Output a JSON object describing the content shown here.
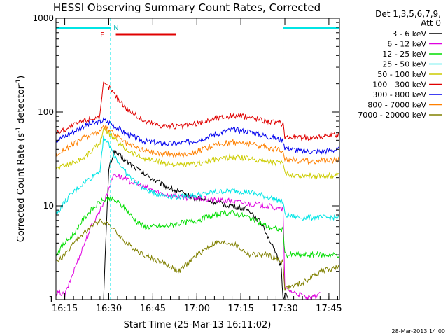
{
  "chart_data": {
    "type": "line",
    "title": "HESSI Observing Summary Count Rates, Corrected",
    "xlabel": "Start Time (25-Mar-13 16:11:02)",
    "ylabel_parts": [
      "Corrected Count Rate (s",
      "-1",
      " detector",
      "-1",
      ")"
    ],
    "y_scale": "log",
    "ylim": [
      1,
      1000
    ],
    "xlim_minutes": [
      16.2,
      17.81
    ],
    "y_ticks": [
      {
        "value": 1,
        "label": "1"
      },
      {
        "value": 10,
        "label": "10"
      },
      {
        "value": 100,
        "label": "100"
      },
      {
        "value": 1000,
        "label": "1000"
      }
    ],
    "x_ticks": [
      {
        "value": 16.25,
        "label": "16:15"
      },
      {
        "value": 16.5,
        "label": "16:30"
      },
      {
        "value": 16.75,
        "label": "16:45"
      },
      {
        "value": 17.0,
        "label": "17:00"
      },
      {
        "value": 17.25,
        "label": "17:15"
      },
      {
        "value": 17.5,
        "label": "17:30"
      },
      {
        "value": 17.75,
        "label": "17:45"
      }
    ],
    "legend_header": [
      "Det 1,3,5,6,7,9,",
      "Att 0"
    ],
    "legend_position": "right",
    "timestamp": "28-Mar-2013 14:00",
    "flag_labels": {
      "flare": "F",
      "night": "N"
    },
    "flag_bars": [
      {
        "kind": "night",
        "color": "#00e5e5",
        "from": 16.2,
        "to": 16.51
      },
      {
        "kind": "night",
        "color": "#00e5e5",
        "from": 17.49,
        "to": 17.81
      },
      {
        "kind": "flare",
        "color": "#e00000",
        "from": 16.54,
        "to": 16.88
      }
    ],
    "dashed_markers": [
      16.51,
      17.81
    ],
    "solid_markers": [
      17.49
    ],
    "series": [
      {
        "name": "3 - 6 keV",
        "color": "#000000",
        "points": [
          [
            16.47,
            1
          ],
          [
            16.5,
            25
          ],
          [
            16.53,
            38
          ],
          [
            16.6,
            30
          ],
          [
            16.7,
            22
          ],
          [
            16.8,
            17
          ],
          [
            16.9,
            14
          ],
          [
            17.0,
            12
          ],
          [
            17.1,
            11
          ],
          [
            17.2,
            10
          ],
          [
            17.3,
            9
          ],
          [
            17.38,
            6
          ],
          [
            17.45,
            3
          ],
          [
            17.48,
            2.2
          ],
          [
            17.49,
            1
          ],
          [
            17.5,
            1.2
          ],
          [
            17.52,
            1
          ]
        ]
      },
      {
        "name": "6 - 12 keV",
        "color": "#e000e0",
        "points": [
          [
            16.2,
            1.1
          ],
          [
            16.22,
            1.2
          ],
          [
            16.25,
            1.1
          ],
          [
            16.3,
            2
          ],
          [
            16.35,
            3.5
          ],
          [
            16.4,
            6
          ],
          [
            16.45,
            9
          ],
          [
            16.48,
            12
          ],
          [
            16.53,
            22
          ],
          [
            16.6,
            19
          ],
          [
            16.7,
            16
          ],
          [
            16.8,
            13.5
          ],
          [
            16.9,
            12.5
          ],
          [
            17.0,
            12
          ],
          [
            17.1,
            11.5
          ],
          [
            17.2,
            11.2
          ],
          [
            17.3,
            10.5
          ],
          [
            17.4,
            10
          ],
          [
            17.49,
            9
          ],
          [
            17.5,
            1.3
          ],
          [
            17.55,
            1.2
          ],
          [
            17.6,
            1.1
          ],
          [
            17.65,
            1
          ],
          [
            17.7,
            1.2
          ]
        ]
      },
      {
        "name": "12 - 25 keV",
        "color": "#00dd00",
        "points": [
          [
            16.2,
            3
          ],
          [
            16.25,
            4
          ],
          [
            16.3,
            5
          ],
          [
            16.35,
            7
          ],
          [
            16.4,
            9
          ],
          [
            16.45,
            11
          ],
          [
            16.5,
            12
          ],
          [
            16.55,
            11
          ],
          [
            16.6,
            9
          ],
          [
            16.65,
            7
          ],
          [
            16.7,
            6
          ],
          [
            16.8,
            6
          ],
          [
            16.9,
            6.5
          ],
          [
            17.0,
            7
          ],
          [
            17.1,
            8
          ],
          [
            17.2,
            8.5
          ],
          [
            17.3,
            7.5
          ],
          [
            17.4,
            6
          ],
          [
            17.49,
            5.5
          ],
          [
            17.5,
            3
          ],
          [
            17.6,
            3
          ],
          [
            17.7,
            3
          ],
          [
            17.81,
            3
          ]
        ]
      },
      {
        "name": "25 - 50 keV",
        "color": "#00e5e5",
        "points": [
          [
            16.2,
            8
          ],
          [
            16.25,
            11
          ],
          [
            16.3,
            14
          ],
          [
            16.35,
            17
          ],
          [
            16.4,
            20
          ],
          [
            16.45,
            24
          ],
          [
            16.47,
            55
          ],
          [
            16.5,
            45
          ],
          [
            16.55,
            30
          ],
          [
            16.6,
            22
          ],
          [
            16.7,
            15
          ],
          [
            16.8,
            13
          ],
          [
            16.9,
            12.5
          ],
          [
            17.0,
            13
          ],
          [
            17.1,
            14
          ],
          [
            17.2,
            14.5
          ],
          [
            17.3,
            14
          ],
          [
            17.4,
            12.5
          ],
          [
            17.49,
            11
          ],
          [
            17.5,
            8
          ],
          [
            17.6,
            7.5
          ],
          [
            17.7,
            7.5
          ],
          [
            17.81,
            7.5
          ]
        ]
      },
      {
        "name": "50 - 100 keV",
        "color": "#cccc00",
        "points": [
          [
            16.2,
            25
          ],
          [
            16.25,
            27
          ],
          [
            16.3,
            29
          ],
          [
            16.35,
            32
          ],
          [
            16.4,
            38
          ],
          [
            16.45,
            48
          ],
          [
            16.47,
            65
          ],
          [
            16.5,
            60
          ],
          [
            16.55,
            48
          ],
          [
            16.6,
            40
          ],
          [
            16.7,
            32
          ],
          [
            16.8,
            29
          ],
          [
            16.9,
            27
          ],
          [
            17.0,
            28
          ],
          [
            17.1,
            31
          ],
          [
            17.2,
            33
          ],
          [
            17.3,
            32
          ],
          [
            17.4,
            30
          ],
          [
            17.49,
            28
          ],
          [
            17.5,
            22
          ],
          [
            17.6,
            21
          ],
          [
            17.7,
            21
          ],
          [
            17.81,
            21
          ]
        ]
      },
      {
        "name": "100 - 300 keV",
        "color": "#e00000",
        "points": [
          [
            16.2,
            60
          ],
          [
            16.25,
            65
          ],
          [
            16.3,
            72
          ],
          [
            16.35,
            80
          ],
          [
            16.4,
            85
          ],
          [
            16.45,
            90
          ],
          [
            16.47,
            200
          ],
          [
            16.5,
            185
          ],
          [
            16.55,
            140
          ],
          [
            16.6,
            110
          ],
          [
            16.7,
            80
          ],
          [
            16.8,
            72
          ],
          [
            16.9,
            70
          ],
          [
            17.0,
            75
          ],
          [
            17.1,
            85
          ],
          [
            17.2,
            92
          ],
          [
            17.3,
            88
          ],
          [
            17.4,
            80
          ],
          [
            17.49,
            75
          ],
          [
            17.5,
            55
          ],
          [
            17.6,
            53
          ],
          [
            17.7,
            55
          ],
          [
            17.81,
            57
          ]
        ]
      },
      {
        "name": "300 - 800 keV",
        "color": "#0000ee",
        "points": [
          [
            16.2,
            50
          ],
          [
            16.25,
            55
          ],
          [
            16.3,
            62
          ],
          [
            16.35,
            70
          ],
          [
            16.4,
            75
          ],
          [
            16.45,
            78
          ],
          [
            16.47,
            82
          ],
          [
            16.5,
            78
          ],
          [
            16.55,
            68
          ],
          [
            16.6,
            58
          ],
          [
            16.7,
            49
          ],
          [
            16.8,
            46
          ],
          [
            16.9,
            46
          ],
          [
            17.0,
            50
          ],
          [
            17.1,
            58
          ],
          [
            17.2,
            65
          ],
          [
            17.3,
            62
          ],
          [
            17.4,
            55
          ],
          [
            17.49,
            50
          ],
          [
            17.5,
            42
          ],
          [
            17.6,
            38
          ],
          [
            17.7,
            38
          ],
          [
            17.81,
            40
          ]
        ]
      },
      {
        "name": "800 - 7000 keV",
        "color": "#ff8000",
        "points": [
          [
            16.2,
            35
          ],
          [
            16.25,
            40
          ],
          [
            16.3,
            45
          ],
          [
            16.35,
            52
          ],
          [
            16.4,
            58
          ],
          [
            16.45,
            62
          ],
          [
            16.47,
            68
          ],
          [
            16.5,
            64
          ],
          [
            16.55,
            55
          ],
          [
            16.6,
            46
          ],
          [
            16.7,
            39
          ],
          [
            16.8,
            36
          ],
          [
            16.9,
            35
          ],
          [
            17.0,
            38
          ],
          [
            17.1,
            44
          ],
          [
            17.2,
            48
          ],
          [
            17.3,
            46
          ],
          [
            17.4,
            42
          ],
          [
            17.49,
            39
          ],
          [
            17.5,
            32
          ],
          [
            17.6,
            30
          ],
          [
            17.7,
            30
          ],
          [
            17.81,
            31
          ]
        ]
      },
      {
        "name": "7000 - 20000 keV",
        "color": "#808000",
        "points": [
          [
            16.2,
            2.5
          ],
          [
            16.25,
            3
          ],
          [
            16.3,
            4
          ],
          [
            16.35,
            5
          ],
          [
            16.4,
            6
          ],
          [
            16.45,
            7
          ],
          [
            16.5,
            6.5
          ],
          [
            16.55,
            5
          ],
          [
            16.6,
            4
          ],
          [
            16.7,
            3
          ],
          [
            16.8,
            2.5
          ],
          [
            16.9,
            2
          ],
          [
            17.0,
            3
          ],
          [
            17.1,
            4
          ],
          [
            17.2,
            4
          ],
          [
            17.3,
            3
          ],
          [
            17.4,
            3
          ],
          [
            17.49,
            2.5
          ],
          [
            17.5,
            1.3
          ],
          [
            17.6,
            1.5
          ],
          [
            17.7,
            2
          ],
          [
            17.81,
            2.2
          ]
        ]
      }
    ]
  }
}
